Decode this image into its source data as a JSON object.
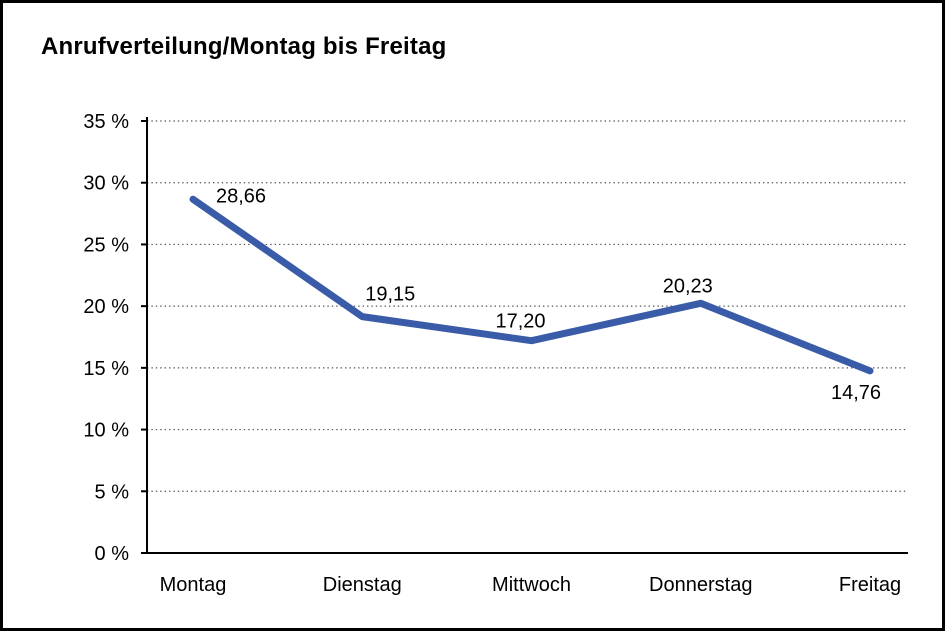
{
  "frame": {
    "background": "#ffffff",
    "border_color": "#000000"
  },
  "chart_data": {
    "type": "line",
    "title": "Anrufverteilung/Montag bis Freitag",
    "categories": [
      "Montag",
      "Dienstag",
      "Mittwoch",
      "Donnerstag",
      "Freitag"
    ],
    "series": [
      {
        "values": [
          28.66,
          19.15,
          17.2,
          20.23,
          14.76
        ],
        "value_labels": [
          "28,66",
          "19,15",
          "17,20",
          "20,23",
          "14,76"
        ],
        "color": "#3A5CA8"
      }
    ],
    "xlabel": "",
    "ylabel": "",
    "ylim": [
      0,
      35
    ],
    "y_tick_step": 5,
    "y_tick_labels": [
      "0 %",
      "5 %",
      "10 %",
      "15 %",
      "20 %",
      "25 %",
      "30 %",
      "35 %"
    ],
    "grid": "horizontal-dotted",
    "grid_color": "#555555",
    "axis_color": "#000000",
    "text_color": "#000000",
    "legend": "none"
  }
}
